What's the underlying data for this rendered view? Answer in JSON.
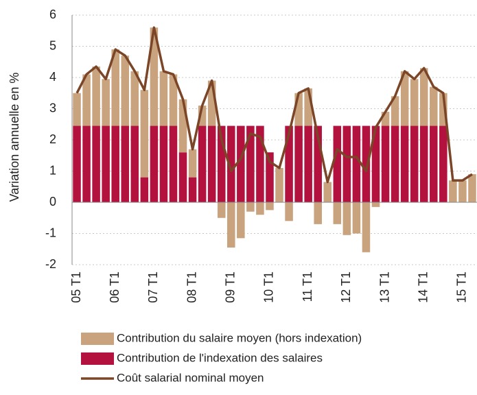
{
  "chart_data": {
    "type": "stacked-bar-line",
    "y_label": "Variation annuelle en %",
    "categories": [
      "05 T1",
      null,
      null,
      null,
      "06 T1",
      null,
      null,
      null,
      "07 T1",
      null,
      null,
      null,
      "08 T1",
      null,
      null,
      null,
      "09 T1",
      null,
      null,
      null,
      "10 T1",
      null,
      null,
      null,
      "11 T1",
      null,
      null,
      null,
      "12 T1",
      null,
      null,
      null,
      "13 T1",
      null,
      null,
      null,
      "14 T1",
      null,
      null,
      null,
      "15 T1",
      null
    ],
    "series": [
      {
        "name": "Contribution du salaire moyen (hors indexation)",
        "kind": "bar",
        "color": "#c9a27e",
        "values": [
          1.05,
          1.65,
          1.9,
          1.5,
          2.45,
          2.25,
          1.75,
          2.8,
          3.15,
          1.75,
          1.65,
          1.7,
          0.9,
          0.65,
          1.45,
          -0.5,
          -1.45,
          -1.15,
          -0.3,
          -0.4,
          -0.25,
          1.1,
          -0.6,
          1.05,
          1.2,
          -0.7,
          0.65,
          -0.7,
          -1.05,
          -1.0,
          -1.6,
          -0.15,
          0.45,
          0.95,
          1.75,
          1.5,
          1.85,
          1.25,
          1.05,
          0.7,
          0.7,
          0.9
        ]
      },
      {
        "name": "Contribution de l'indexation des salaires",
        "kind": "bar",
        "color": "#b3123f",
        "values": [
          2.45,
          2.45,
          2.45,
          2.45,
          2.45,
          2.45,
          2.45,
          0.8,
          2.45,
          2.45,
          2.45,
          1.6,
          0.8,
          2.45,
          2.45,
          2.45,
          2.45,
          2.45,
          2.45,
          2.45,
          1.6,
          0,
          2.45,
          2.45,
          2.45,
          2.45,
          0,
          2.45,
          2.45,
          2.45,
          2.45,
          2.45,
          2.45,
          2.45,
          2.45,
          2.45,
          2.45,
          2.45,
          2.45,
          0,
          0,
          0
        ]
      },
      {
        "name": "Coût salarial nominal moyen",
        "kind": "line",
        "color": "#7b4527",
        "values": [
          3.5,
          4.1,
          4.35,
          3.95,
          4.9,
          4.7,
          4.2,
          3.6,
          5.6,
          4.2,
          4.1,
          3.3,
          1.7,
          3.1,
          3.9,
          2.0,
          1.0,
          1.4,
          2.2,
          2.1,
          1.3,
          1.1,
          2.2,
          3.5,
          3.65,
          2.1,
          0.65,
          1.7,
          1.45,
          1.45,
          1.0,
          2.4,
          2.9,
          3.4,
          4.2,
          3.95,
          4.3,
          3.7,
          3.5,
          0.7,
          0.7,
          0.9
        ]
      }
    ],
    "ylim": [
      -2,
      6
    ],
    "yticks": [
      -2,
      -1,
      0,
      1,
      2,
      3,
      4,
      5,
      6
    ],
    "grid": true
  }
}
